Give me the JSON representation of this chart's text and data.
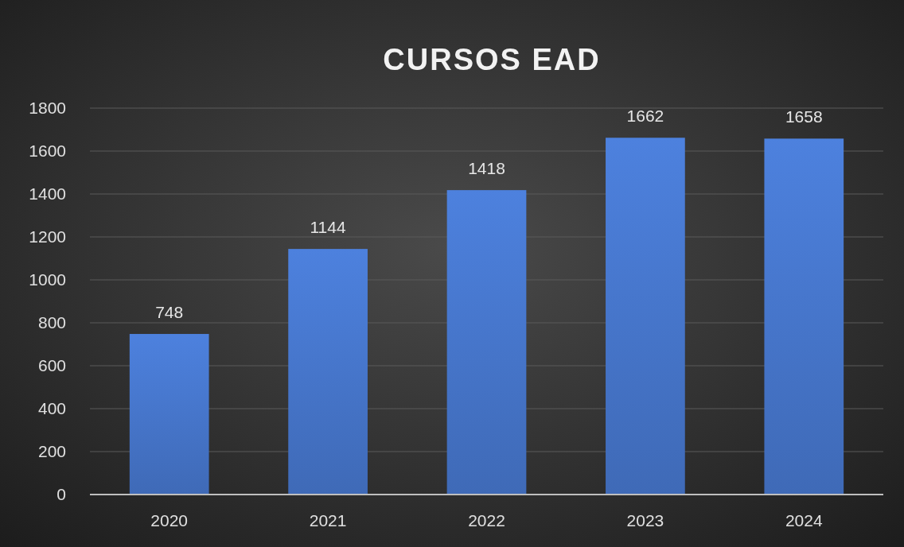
{
  "chart_data": {
    "type": "bar",
    "title": "CURSOS EAD",
    "categories": [
      "2020",
      "2021",
      "2022",
      "2023",
      "2024"
    ],
    "values": [
      748,
      1144,
      1418,
      1662,
      1658
    ],
    "color": "#4472c4",
    "ylim": [
      0,
      1800
    ],
    "yticks": [
      0,
      200,
      400,
      600,
      800,
      1000,
      1200,
      1400,
      1600,
      1800
    ],
    "grid": "y",
    "data_labels": true
  }
}
